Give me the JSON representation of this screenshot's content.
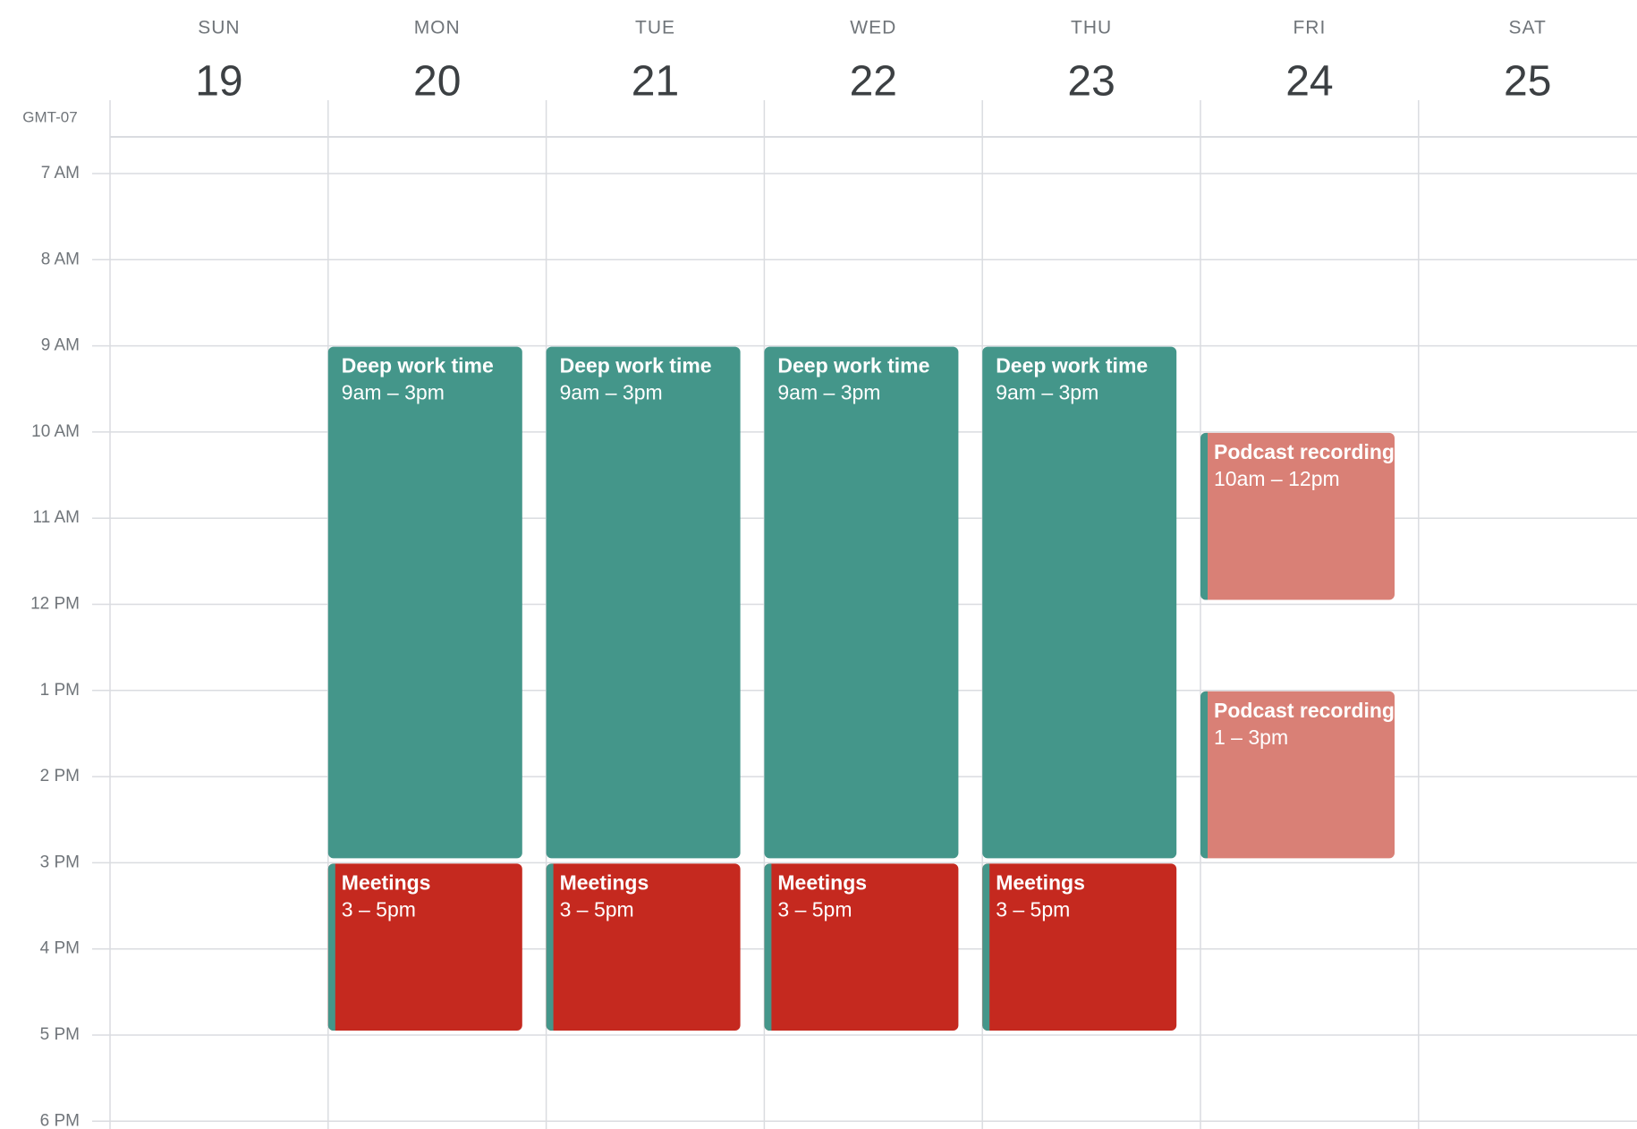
{
  "timezone": "GMT-07",
  "hours": [
    "7 AM",
    "8 AM",
    "9 AM",
    "10 AM",
    "11 AM",
    "12 PM",
    "1 PM",
    "2 PM",
    "3 PM",
    "4 PM",
    "5 PM",
    "6 PM"
  ],
  "days": [
    {
      "dow": "SUN",
      "date": 19,
      "events": []
    },
    {
      "dow": "MON",
      "date": 20,
      "events": [
        {
          "title": "Deep work time",
          "time": "9am – 3pm",
          "color": "#44968a"
        },
        {
          "title": "Meetings",
          "time": "3 – 5pm",
          "color": "#c5291f",
          "accent": "#44968a"
        }
      ]
    },
    {
      "dow": "TUE",
      "date": 21,
      "events": [
        {
          "title": "Deep work time",
          "time": "9am – 3pm",
          "color": "#44968a"
        },
        {
          "title": "Meetings",
          "time": "3 – 5pm",
          "color": "#c5291f",
          "accent": "#44968a"
        }
      ]
    },
    {
      "dow": "WED",
      "date": 22,
      "events": [
        {
          "title": "Deep work time",
          "time": "9am – 3pm",
          "color": "#44968a"
        },
        {
          "title": "Meetings",
          "time": "3 – 5pm",
          "color": "#c5291f",
          "accent": "#44968a"
        }
      ]
    },
    {
      "dow": "THU",
      "date": 23,
      "events": [
        {
          "title": "Deep work time",
          "time": "9am – 3pm",
          "color": "#44968a"
        },
        {
          "title": "Meetings",
          "time": "3 – 5pm",
          "color": "#c5291f",
          "accent": "#44968a"
        }
      ]
    },
    {
      "dow": "FRI",
      "date": 24,
      "events": [
        {
          "title": "Podcast recording",
          "time": "10am – 12pm",
          "color": "#d98076",
          "accent": "#44968a"
        },
        {
          "title": "Podcast recording",
          "time": "1 – 3pm",
          "color": "#d98076",
          "accent": "#44968a"
        }
      ]
    },
    {
      "dow": "SAT",
      "date": 25,
      "events": []
    }
  ]
}
